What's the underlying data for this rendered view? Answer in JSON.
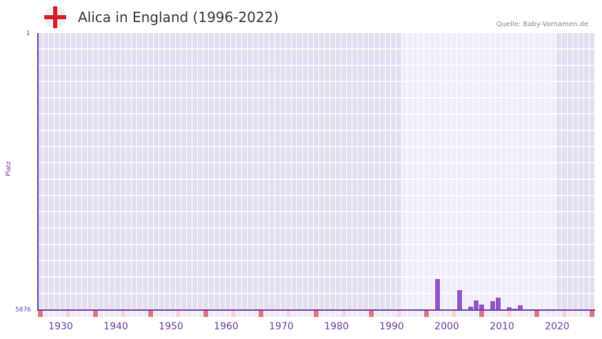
{
  "header": {
    "title": "Alica in England (1996-2022)",
    "source": "Quelle: Baby-Vornamen.de",
    "flag_icon": "england-flag-icon"
  },
  "axis": {
    "y_title": "Platz",
    "y_top": "1",
    "y_bottom": "5876",
    "x_ticks": [
      "1930",
      "1940",
      "1950",
      "1960",
      "1970",
      "1980",
      "1990",
      "2000",
      "2010",
      "2020"
    ]
  },
  "colors": {
    "bar": "#8e55c8",
    "axis": "#6a3aa0",
    "bg_dark": "#e3dfee",
    "bg_light": "#f1eefa",
    "tick_decade": "#e0737f",
    "tick_half": "#f5d6de",
    "tick_default": "#efecf8"
  },
  "chart_data": {
    "type": "bar",
    "title": "Alica in England (1996-2022)",
    "xlabel": "",
    "ylabel": "Platz",
    "ylim": [
      5876,
      1
    ],
    "x_range": [
      1928,
      2028
    ],
    "highlight_range": [
      1996,
      2022
    ],
    "grid": true,
    "legend": null,
    "categories": [
      "2000",
      "2004",
      "2006",
      "2007",
      "2008",
      "2010",
      "2011",
      "2013",
      "2014",
      "2015"
    ],
    "values": [
      5215,
      5450,
      5800,
      5670,
      5760,
      5685,
      5610,
      5815,
      5845,
      5770
    ]
  }
}
